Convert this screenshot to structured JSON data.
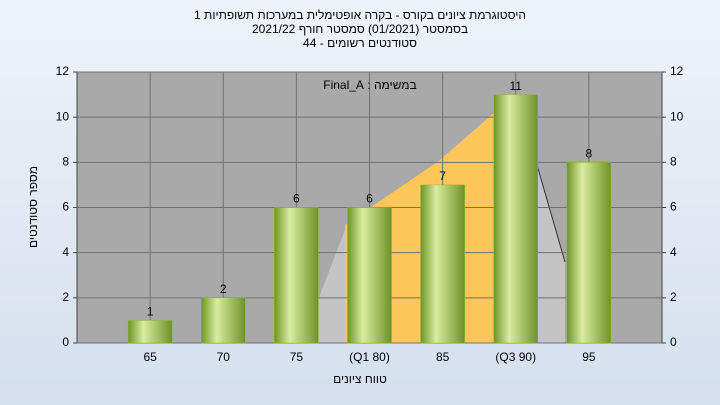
{
  "chart_data": {
    "type": "bar",
    "title": "היסטוגרמת ציונים בקורס - בקרה אופטימלית במערכות תשופתיות 1",
    "subtitle": "בסמסטר  (01/2021)  סמסטר חורף 2021/22",
    "subtitle2": "סטודנטים רשומים - 44",
    "annotation": "במשימה : Final_A",
    "x_label": "טווח ציונים",
    "y_label": "מספר סטודנטים",
    "categories": [
      "65",
      "70",
      "75",
      "(Q1 80)",
      "85",
      "(Q3 90)",
      "95"
    ],
    "values": [
      1,
      2,
      6,
      6,
      7,
      11,
      8
    ],
    "color": "#8db43c",
    "ylim": [
      0,
      12
    ],
    "yticks": [
      0,
      2,
      4,
      6,
      8,
      10,
      12
    ],
    "y2lim": [
      0,
      12
    ],
    "y2ticks": [
      0,
      2,
      4,
      6,
      8,
      10,
      12
    ],
    "grid": true
  }
}
